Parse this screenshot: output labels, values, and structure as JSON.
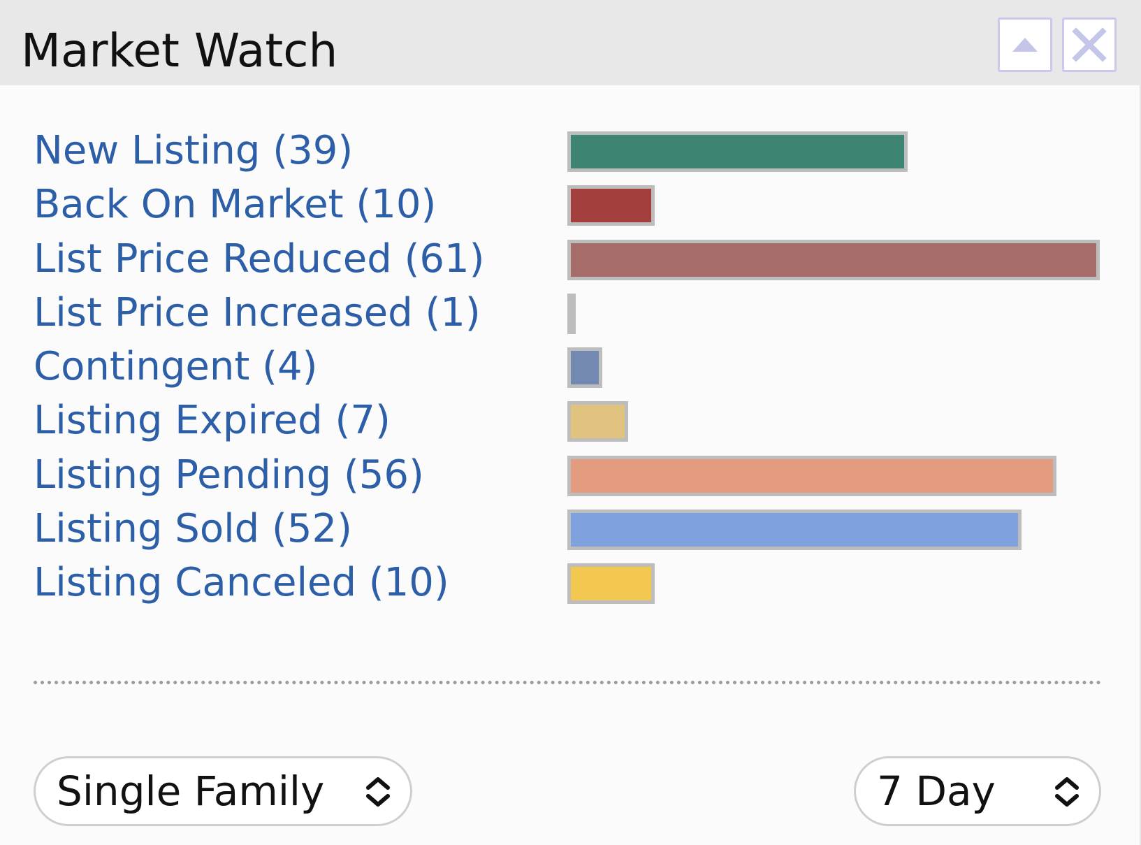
{
  "window": {
    "title": "Market Watch",
    "collapse_icon": "triangle-up-icon",
    "close_icon": "close-x-icon"
  },
  "chart_data": {
    "type": "bar",
    "categories": [
      "New Listing",
      "Back On Market",
      "List Price Reduced",
      "List Price Increased",
      "Contingent",
      "Listing Expired",
      "Listing Pending",
      "Listing Sold",
      "Listing Canceled"
    ],
    "values": [
      39,
      10,
      61,
      1,
      4,
      7,
      56,
      52,
      10
    ],
    "labels": [
      "New Listing (39)",
      "Back On Market (10)",
      "List Price Reduced (61)",
      "List Price Increased (1)",
      "Contingent (4)",
      "Listing Expired (7)",
      "Listing Pending (56)",
      "Listing Sold (52)",
      "Listing Canceled (10)"
    ],
    "colors": [
      "#3d8572",
      "#a33f3c",
      "#a56c69",
      "#bdbdbd",
      "#7389b2",
      "#e0c37f",
      "#e49c81",
      "#7fa1dd",
      "#f2c851"
    ],
    "bar_border_color": "#bdbdbd",
    "title": "",
    "xlabel": "",
    "ylabel": ""
  },
  "filters": {
    "property_type": {
      "value": "Single Family",
      "icon": "up-down-chevron-icon"
    },
    "time_range": {
      "value": "7 Day",
      "icon": "up-down-chevron-icon"
    }
  },
  "colors": {
    "link": "#2d5ea8",
    "titlebar": "#e8e8e8",
    "button_border": "#c9c9ec"
  }
}
